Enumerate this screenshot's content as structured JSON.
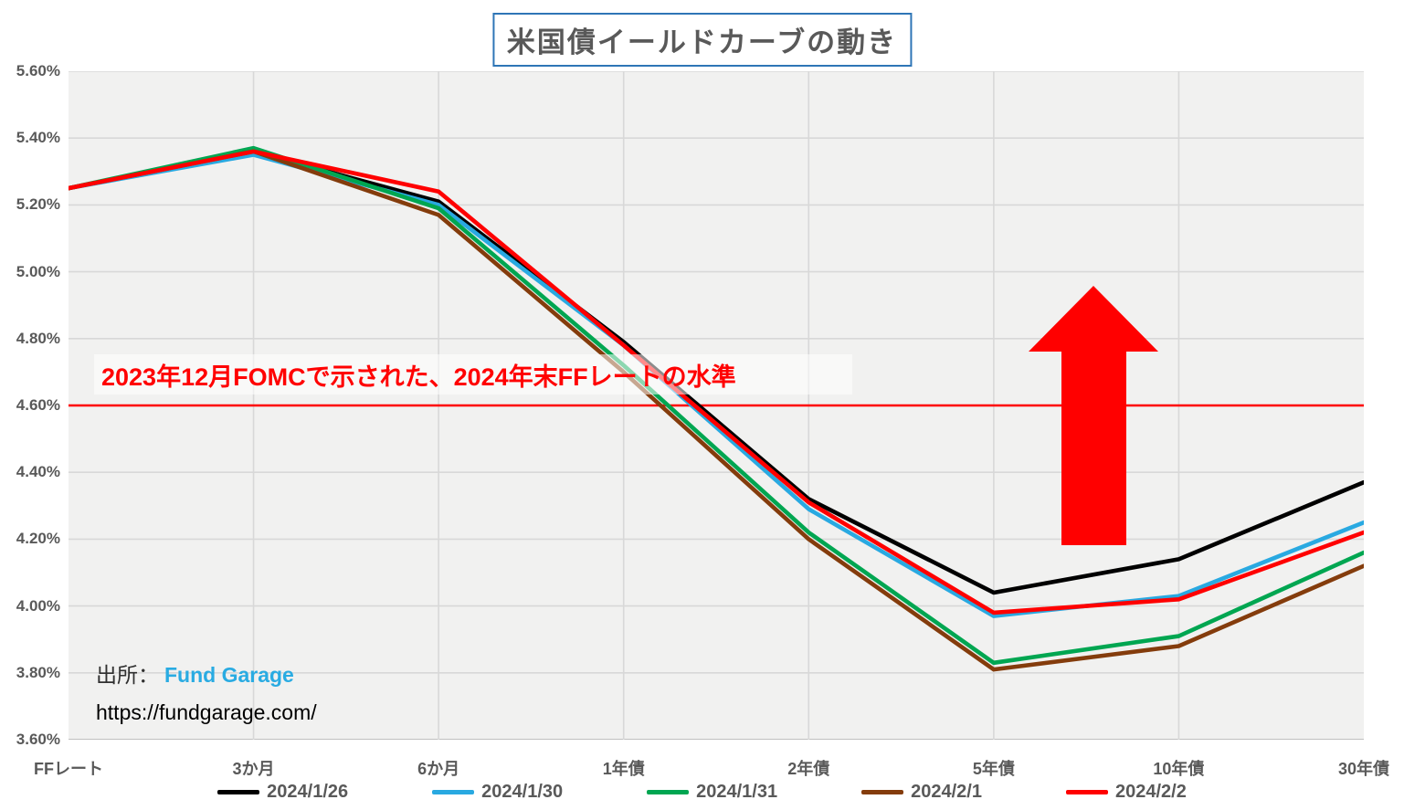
{
  "title": "米国債イールドカーブの動き",
  "annotation": {
    "text": "2023年12月FOMCで示された、2024年末FFレートの水準",
    "color": "#FF0000"
  },
  "source": {
    "label": "出所：",
    "name": "Fund Garage",
    "name_color": "#29ABE2",
    "url": "https://fundgarage.com/"
  },
  "chart_data": {
    "type": "line",
    "title": "米国債イールドカーブの動き",
    "categories": [
      "FFレート",
      "3か月",
      "6か月",
      "1年債",
      "2年債",
      "5年債",
      "10年債",
      "30年債"
    ],
    "series": [
      {
        "name": "2024/1/26",
        "color": "#000000",
        "values": [
          5.25,
          5.36,
          5.21,
          4.79,
          4.32,
          4.04,
          4.14,
          4.37
        ]
      },
      {
        "name": "2024/1/30",
        "color": "#29A9E1",
        "values": [
          5.25,
          5.35,
          5.2,
          4.78,
          4.29,
          3.97,
          4.03,
          4.25
        ]
      },
      {
        "name": "2024/1/31",
        "color": "#00A651",
        "values": [
          5.25,
          5.37,
          5.19,
          4.72,
          4.22,
          3.83,
          3.91,
          4.16
        ]
      },
      {
        "name": "2024/2/1",
        "color": "#843C0C",
        "values": [
          5.25,
          5.36,
          5.17,
          4.7,
          4.2,
          3.81,
          3.88,
          4.12
        ]
      },
      {
        "name": "2024/2/2",
        "color": "#FF0000",
        "values": [
          5.25,
          5.36,
          5.24,
          4.78,
          4.31,
          3.98,
          4.02,
          4.22
        ]
      }
    ],
    "ylim": [
      3.6,
      5.6
    ],
    "y_tick_step": 0.2,
    "y_tick_format": "percent2",
    "grid": true,
    "grid_color": "#D8D8D8",
    "plot_background": "#F1F1F0",
    "legend_position": "bottom",
    "reference_line": {
      "value": 4.6,
      "color": "#FF0000",
      "label": "2023年12月FOMCで示された、2024年末FFレートの水準"
    },
    "annotation_arrow": {
      "shape": "block-arrow-up",
      "color": "#FF0000"
    }
  },
  "title_border_color": "#2E75B6"
}
